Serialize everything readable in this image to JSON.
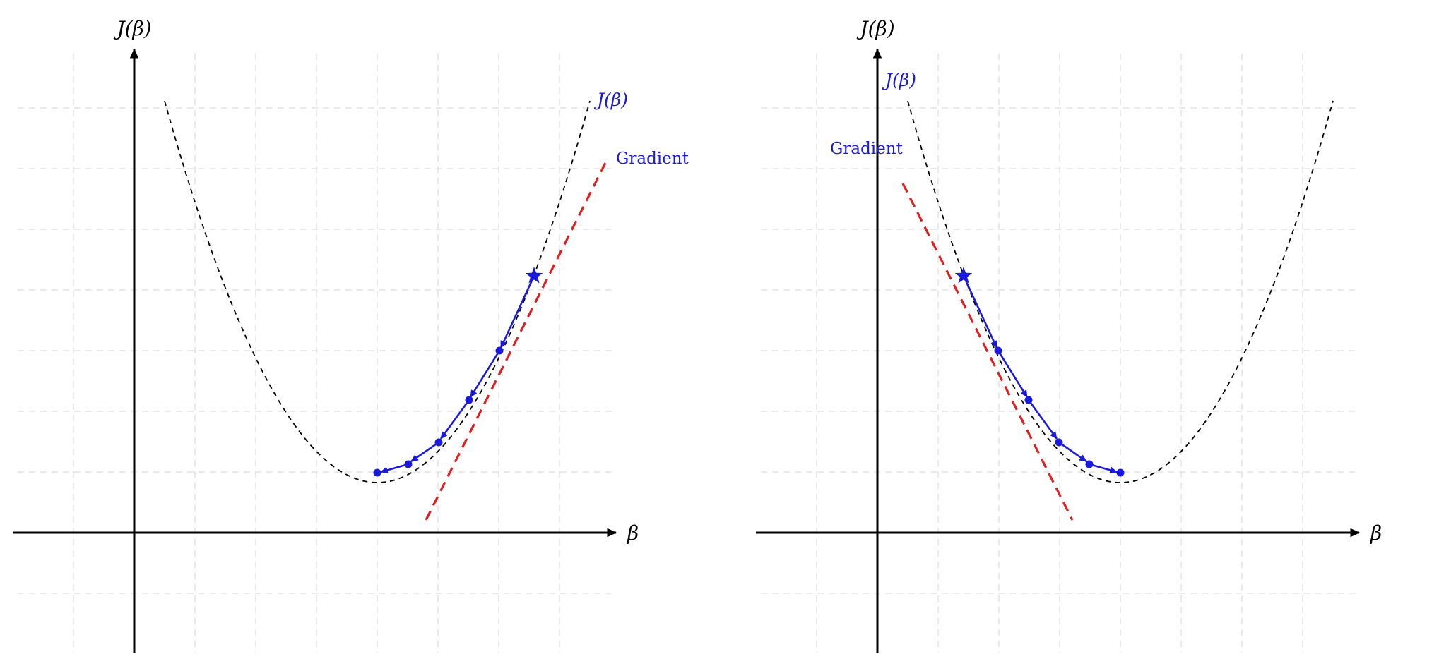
{
  "panels": [
    {
      "id": "left",
      "y_axis_label": "J(β)",
      "x_axis_label": "β",
      "curve_label": "J(β)",
      "gradient_label": "Gradient",
      "direction": "descending from the right"
    },
    {
      "id": "right",
      "y_axis_label": "J(β)",
      "x_axis_label": "β",
      "curve_label": "J(β)",
      "gradient_label": "Gradient",
      "direction": "descending from the left"
    }
  ],
  "colors": {
    "curve": "#000000",
    "gradient_line": "#e02020",
    "descent_path": "#1a1adf",
    "labels": "#1a1adf",
    "grid": "#e4e4e4",
    "axes": "#000000"
  }
}
